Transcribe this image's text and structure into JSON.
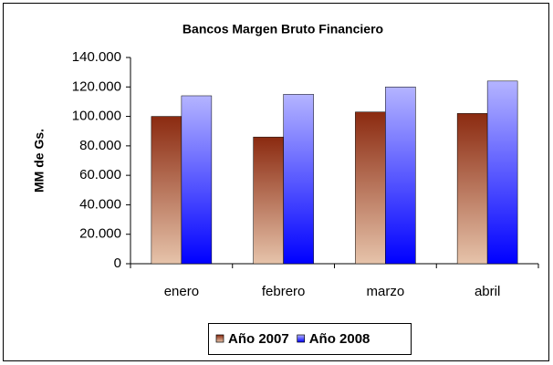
{
  "chart_data": {
    "type": "bar",
    "title": "Bancos Margen Bruto Financiero",
    "y_label": "MM de Gs.",
    "categories": [
      "enero",
      "febrero",
      "marzo",
      "abril"
    ],
    "series": [
      {
        "name": "Año 2007",
        "color": "#8b2a10",
        "gradient": [
          "#8b2a10",
          "#e6c3aa"
        ],
        "values": [
          100000,
          86000,
          103000,
          102000
        ]
      },
      {
        "name": "Año 2008",
        "color": "#6666ff",
        "gradient": [
          "#b4b4ff",
          "#0000ff"
        ],
        "values": [
          114000,
          115000,
          120000,
          124000
        ]
      }
    ],
    "ylim": [
      0,
      140000
    ],
    "yticks": [
      0,
      {
        "value": 20000,
        "label": "20.000"
      },
      {
        "value": 40000,
        "label": "40.000"
      },
      {
        "value": 60000,
        "label": "60.000"
      },
      {
        "value": 80000,
        "label": "80.000"
      },
      {
        "value": 100000,
        "label": "100.000"
      },
      {
        "value": 120000,
        "label": "120.000"
      },
      {
        "value": 140000,
        "label": "140.000"
      }
    ],
    "grid": false,
    "legend": "bottom"
  }
}
